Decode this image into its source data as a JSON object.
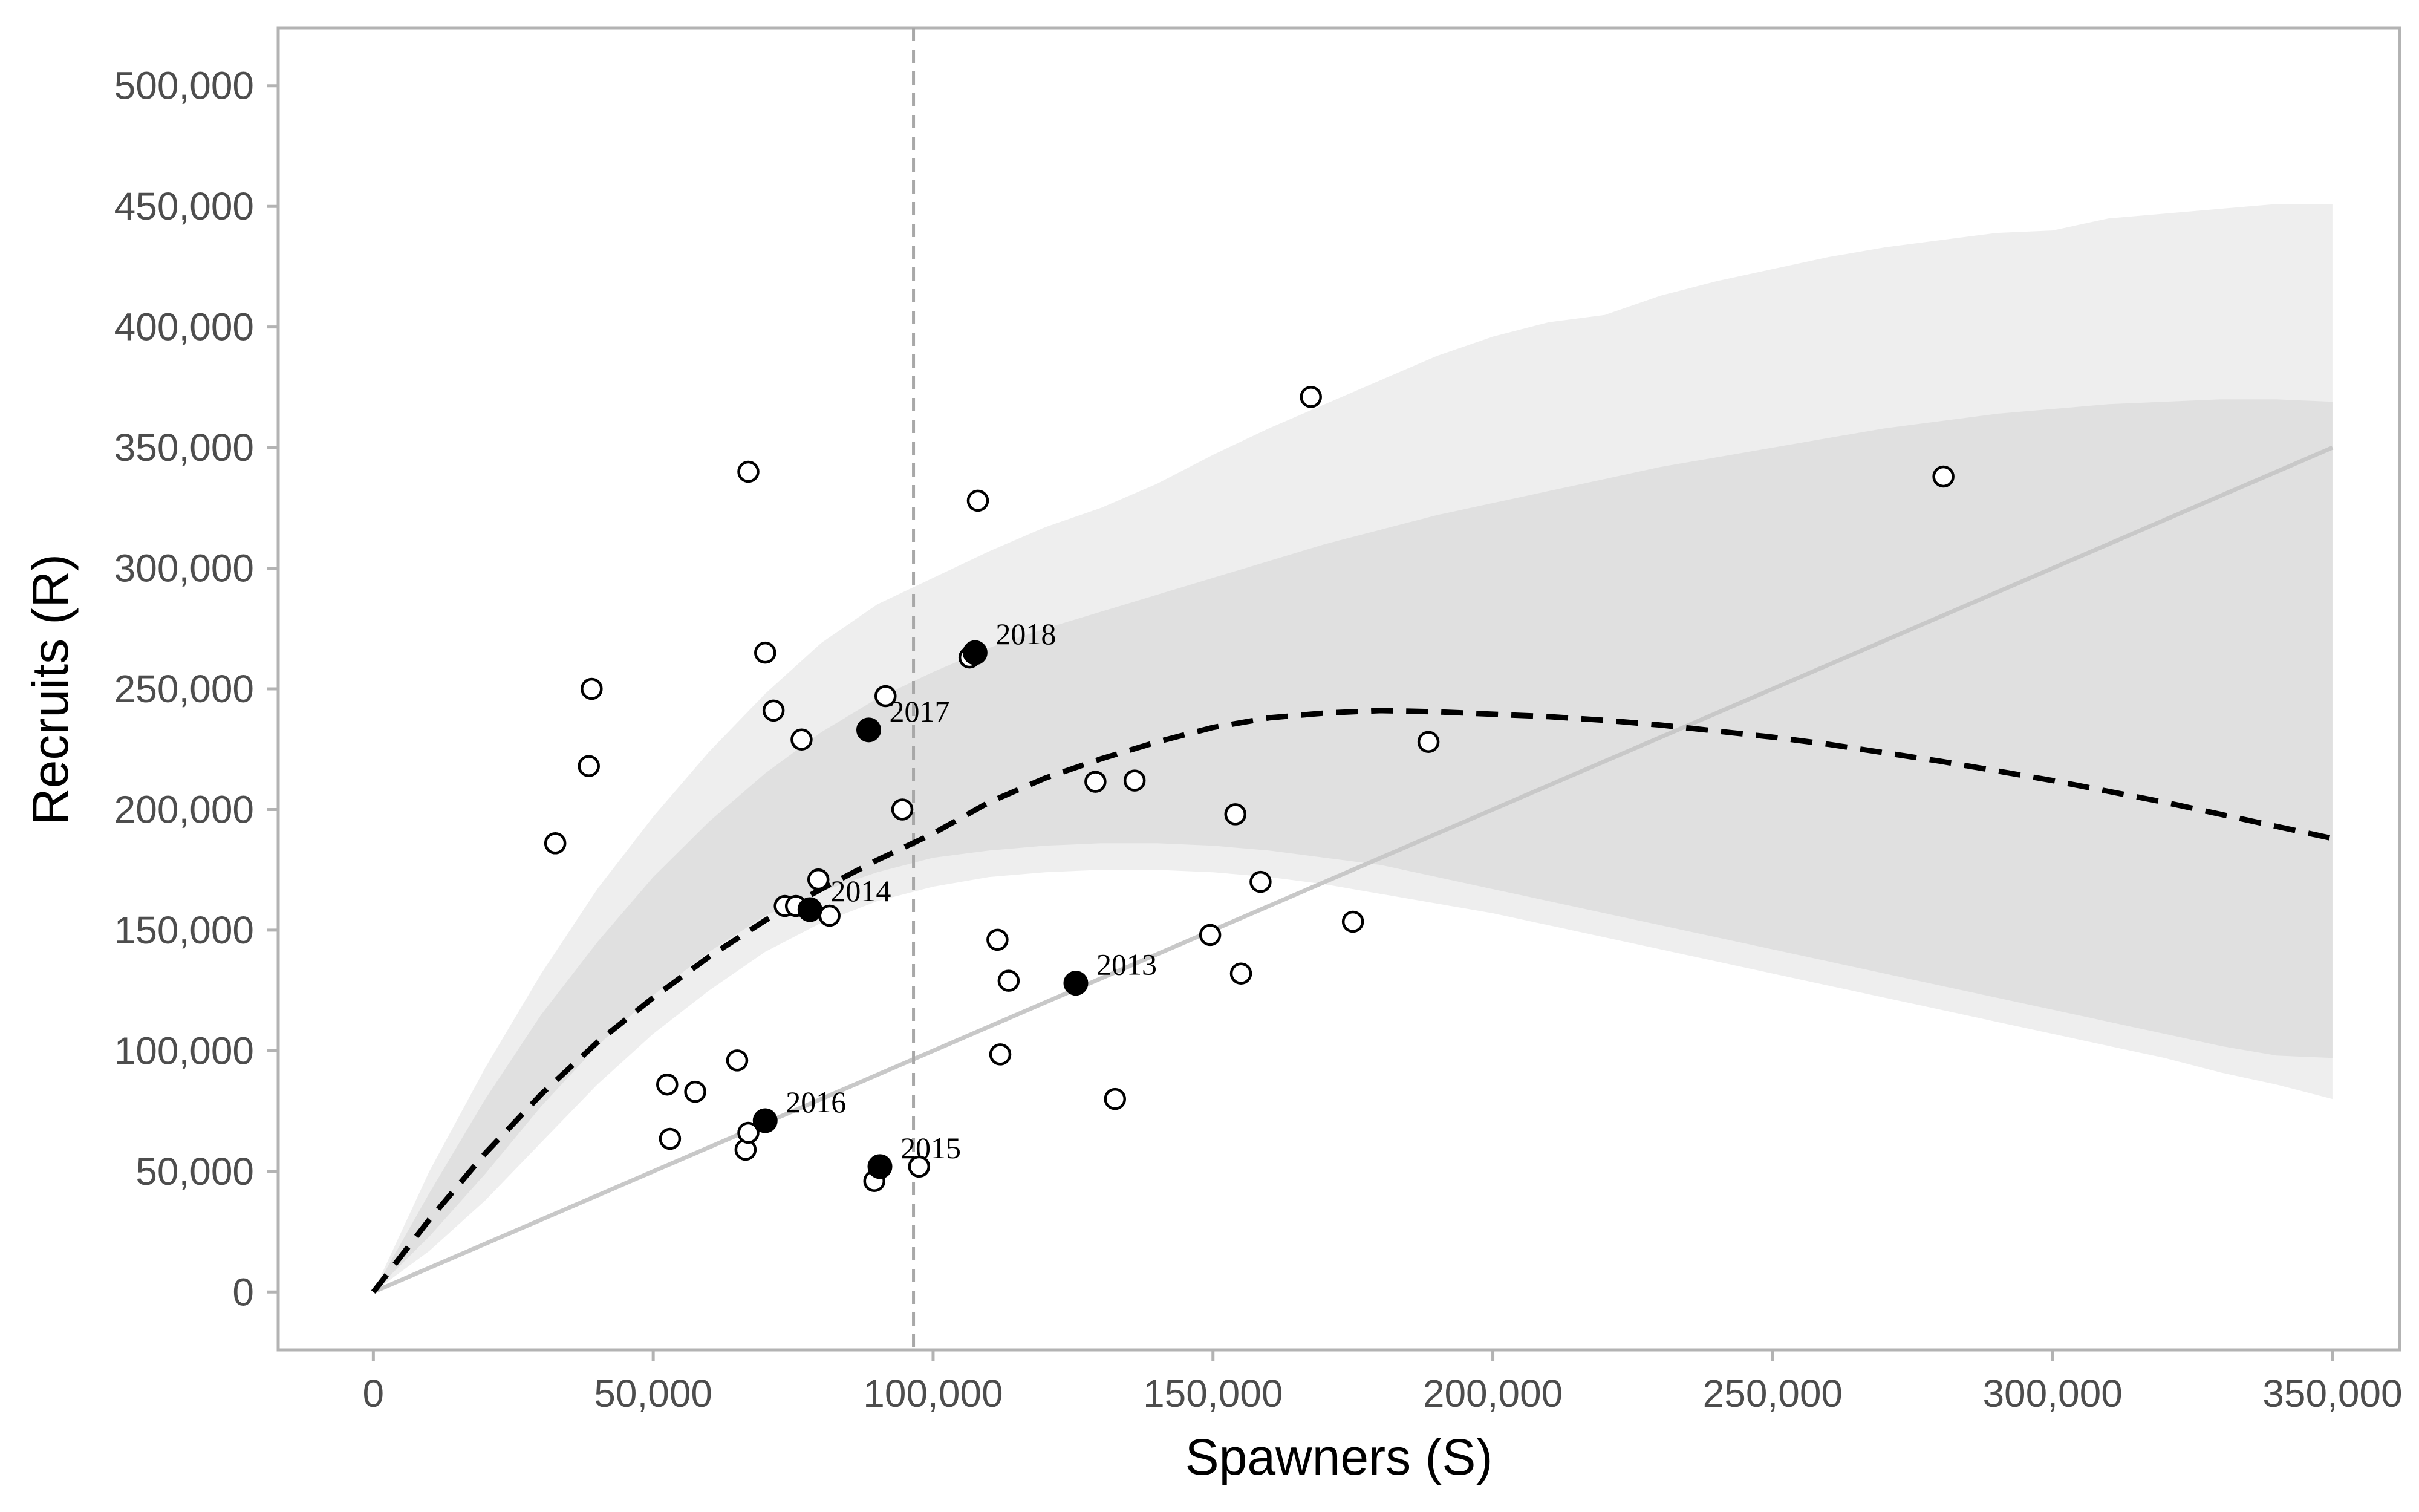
{
  "chart_data": {
    "type": "scatter",
    "xlabel": "Spawners (S)",
    "ylabel": "Recruits (R)",
    "xlim": [
      -17000,
      362000
    ],
    "ylim": [
      -24000,
      524000
    ],
    "x_ticks": [
      0,
      50000,
      100000,
      150000,
      200000,
      250000,
      300000,
      350000
    ],
    "x_tick_labels": [
      "0",
      "50,000",
      "100,000",
      "150,000",
      "200,000",
      "250,000",
      "300,000",
      "350,000"
    ],
    "y_ticks": [
      0,
      50000,
      100000,
      150000,
      200000,
      250000,
      300000,
      350000,
      400000,
      450000,
      500000
    ],
    "y_tick_labels": [
      "0",
      "50,000",
      "100,000",
      "150,000",
      "200,000",
      "250,000",
      "300,000",
      "350,000",
      "400,000",
      "450,000",
      "500,000"
    ],
    "grid": false,
    "colors": {
      "outer_band": "#eeeeee",
      "inner_band": "#e0e0e0",
      "replacement_line": "#c8c8c8",
      "vline": "#a8a8a8",
      "median_curve": "#000000",
      "highlight_point": "#000000"
    },
    "vline_x": 96500,
    "replacement_line": {
      "x": [
        0,
        350000
      ],
      "y": [
        0,
        350000
      ]
    },
    "median_curve": {
      "x": [
        0,
        10000,
        20000,
        30000,
        40000,
        50000,
        60000,
        70000,
        80000,
        90000,
        100000,
        110000,
        120000,
        130000,
        140000,
        150000,
        160000,
        170000,
        180000,
        190000,
        200000,
        210000,
        220000,
        230000,
        240000,
        250000,
        260000,
        270000,
        280000,
        290000,
        300000,
        310000,
        320000,
        330000,
        340000,
        350000
      ],
      "y": [
        0,
        30000,
        57500,
        82000,
        103500,
        122000,
        139000,
        154000,
        167000,
        179000,
        190000,
        203000,
        213000,
        221000,
        228000,
        234000,
        238000,
        240000,
        241000,
        240500,
        239500,
        238500,
        237000,
        235000,
        232500,
        230000,
        227000,
        223500,
        220000,
        216000,
        212000,
        207500,
        203000,
        198000,
        193000,
        188000
      ]
    },
    "outer_band": {
      "x": [
        0,
        10000,
        20000,
        30000,
        40000,
        50000,
        60000,
        70000,
        80000,
        90000,
        100000,
        110000,
        120000,
        130000,
        140000,
        150000,
        160000,
        170000,
        180000,
        190000,
        200000,
        210000,
        220000,
        230000,
        240000,
        250000,
        260000,
        270000,
        280000,
        290000,
        300000,
        310000,
        320000,
        330000,
        340000,
        350000
      ],
      "upper": [
        0,
        50000,
        93000,
        132000,
        167000,
        197000,
        224000,
        248000,
        269000,
        285000,
        296000,
        307000,
        317000,
        325000,
        335000,
        347000,
        358000,
        368000,
        378000,
        388000,
        396000,
        402000,
        405000,
        413000,
        419000,
        424000,
        429000,
        433000,
        436000,
        439000,
        440000,
        445000,
        447000,
        449000,
        451000,
        451000
      ],
      "lower": [
        0,
        17000,
        38000,
        62000,
        86000,
        107000,
        125000,
        141000,
        153000,
        162000,
        168000,
        172000,
        174000,
        175000,
        175000,
        174000,
        172000,
        169000,
        165000,
        161000,
        157000,
        152000,
        147000,
        142000,
        137000,
        132000,
        127000,
        122000,
        117000,
        112000,
        107000,
        102000,
        97000,
        91000,
        86000,
        80000
      ]
    },
    "inner_band": {
      "x": [
        0,
        10000,
        20000,
        30000,
        40000,
        50000,
        60000,
        70000,
        80000,
        90000,
        100000,
        110000,
        120000,
        130000,
        140000,
        150000,
        160000,
        170000,
        180000,
        190000,
        200000,
        210000,
        220000,
        230000,
        240000,
        250000,
        260000,
        270000,
        280000,
        290000,
        300000,
        310000,
        320000,
        330000,
        340000,
        350000
      ],
      "upper": [
        0,
        41000,
        80000,
        115000,
        145000,
        172000,
        195000,
        215000,
        232000,
        246000,
        257000,
        267000,
        275000,
        282000,
        289000,
        296000,
        303000,
        310000,
        316000,
        322000,
        327000,
        332000,
        337000,
        342000,
        346000,
        350000,
        354000,
        358000,
        361000,
        364000,
        366000,
        368000,
        369000,
        370000,
        370000,
        369000
      ],
      "lower": [
        0,
        23000,
        49000,
        77000,
        102000,
        123000,
        141000,
        156000,
        166000,
        174000,
        180000,
        183000,
        185000,
        186000,
        186000,
        185000,
        183000,
        180000,
        177000,
        172000,
        167000,
        162000,
        157000,
        152000,
        147000,
        142000,
        137000,
        132000,
        127000,
        122000,
        117000,
        112000,
        107000,
        102000,
        98000,
        97000
      ]
    },
    "series": [
      {
        "points": [
          [
            32500,
            186000
          ],
          [
            38500,
            218000
          ],
          [
            39000,
            250000
          ],
          [
            52500,
            86000
          ],
          [
            53000,
            63500
          ],
          [
            57500,
            83000
          ],
          [
            65000,
            96000
          ],
          [
            66500,
            59000
          ],
          [
            67000,
            66000
          ],
          [
            67000,
            340000
          ],
          [
            70000,
            265000
          ],
          [
            71500,
            241000
          ],
          [
            73500,
            160000
          ],
          [
            75500,
            160000
          ],
          [
            76500,
            229000
          ],
          [
            79500,
            171000
          ],
          [
            81500,
            156000
          ],
          [
            89500,
            46000
          ],
          [
            91500,
            247000
          ],
          [
            94500,
            200000
          ],
          [
            97500,
            52000
          ],
          [
            106500,
            263000
          ],
          [
            108000,
            328000
          ],
          [
            111500,
            146000
          ],
          [
            112000,
            98500
          ],
          [
            113500,
            129000
          ],
          [
            129000,
            211500
          ],
          [
            132500,
            80000
          ],
          [
            136000,
            212000
          ],
          [
            149500,
            148000
          ],
          [
            154000,
            198000
          ],
          [
            155000,
            132000
          ],
          [
            158500,
            170000
          ],
          [
            167500,
            371000
          ],
          [
            175000,
            153500
          ],
          [
            188500,
            228000
          ],
          [
            280500,
            338000
          ]
        ]
      },
      {
        "points": [
          {
            "x": 125500,
            "y": 128000,
            "label": "2013"
          },
          {
            "x": 78000,
            "y": 158500,
            "label": "2014"
          },
          {
            "x": 90500,
            "y": 52000,
            "label": "2015"
          },
          {
            "x": 70000,
            "y": 71000,
            "label": "2016"
          },
          {
            "x": 88500,
            "y": 233000,
            "label": "2017"
          },
          {
            "x": 107500,
            "y": 265000,
            "label": "2018"
          }
        ]
      }
    ]
  }
}
